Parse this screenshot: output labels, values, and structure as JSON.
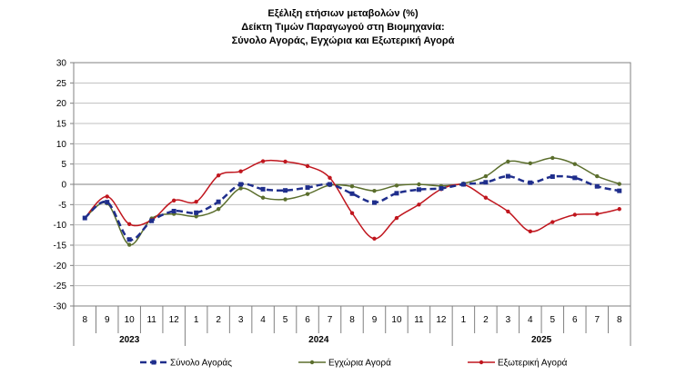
{
  "chart_data": {
    "type": "line",
    "title": [
      "Εξέλιξη ετήσιων μεταβολών (%)",
      "Δείκτη Τιμών Παραγωγού στη Βιομηχανία:",
      "Σύνολο Αγοράς, Εγχώρια και Εξωτερική Αγορά"
    ],
    "ylim": [
      -30,
      30
    ],
    "yticks": [
      30,
      25,
      20,
      15,
      10,
      5,
      0,
      -5,
      -10,
      -15,
      -20,
      -25,
      -30
    ],
    "grid": true,
    "legend_position": "bottom",
    "categories": [
      "8",
      "9",
      "10",
      "11",
      "12",
      "1",
      "2",
      "3",
      "4",
      "5",
      "6",
      "7",
      "8",
      "9",
      "10",
      "11",
      "12",
      "1",
      "2",
      "3",
      "4",
      "5",
      "6",
      "7",
      "8"
    ],
    "year_groups": [
      {
        "label": "2023",
        "count": 5
      },
      {
        "label": "2024",
        "count": 12
      },
      {
        "label": "2025",
        "count": 8
      }
    ],
    "series": [
      {
        "name": "Σύνολο Αγοράς",
        "color": "#1f2e8c",
        "style": "dashed",
        "values": [
          -8.3,
          -4.4,
          -13.6,
          -9.0,
          -6.6,
          -7.0,
          -4.3,
          0.0,
          -1.2,
          -1.5,
          -0.8,
          0.0,
          -2.3,
          -4.5,
          -2.2,
          -1.3,
          -1.0,
          0.0,
          0.5,
          2.0,
          0.4,
          1.9,
          1.6,
          -0.5,
          -1.6
        ]
      },
      {
        "name": "Εγχώρια Αγορά",
        "color": "#5b6e2d",
        "style": "solid",
        "values": [
          -8.3,
          -4.7,
          -14.9,
          -8.4,
          -7.3,
          -7.9,
          -6.1,
          -1.0,
          -3.3,
          -3.7,
          -2.4,
          -0.2,
          -0.5,
          -1.6,
          -0.3,
          0.0,
          -0.4,
          0.2,
          2.0,
          5.6,
          5.2,
          6.5,
          5.0,
          2.0,
          0.1
        ]
      },
      {
        "name": "Εξωτερική Αγορά",
        "color": "#c0161e",
        "style": "solid",
        "values": [
          -8.3,
          -3.0,
          -9.8,
          -8.8,
          -4.0,
          -4.3,
          2.2,
          3.2,
          5.7,
          5.6,
          4.5,
          1.6,
          -7.1,
          -13.4,
          -8.3,
          -5.0,
          -1.2,
          -0.1,
          -3.3,
          -6.7,
          -11.6,
          -9.3,
          -7.5,
          -7.3,
          -6.1
        ]
      }
    ]
  }
}
